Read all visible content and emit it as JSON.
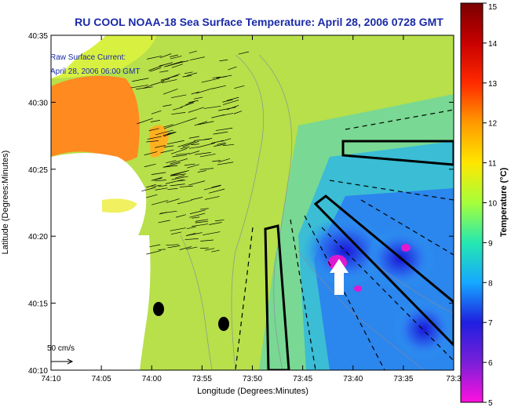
{
  "title": "RU COOL  NOAA-18  Sea Surface Temperature:  April 28, 2006 0728 GMT",
  "current_label_1": "Raw Surface Current:",
  "current_label_2": "April 28, 2006 06:00 GMT",
  "scale_label": "50 cm/s",
  "xlabel": "Longitude (Degrees:Minutes)",
  "ylabel": "Latitude (Degrees:Minutes)",
  "colorbar_label": "Temperature (°C)",
  "x_ticks": [
    "74:10",
    "74:05",
    "74:00",
    "73:55",
    "73:50",
    "73:45",
    "73:40",
    "73:35",
    "73:3"
  ],
  "y_ticks": [
    "40:35",
    "40:30",
    "40:25",
    "40:20",
    "40:15",
    "40:10"
  ],
  "colorbar_ticks": [
    "15",
    "14",
    "13",
    "12",
    "11",
    "10",
    "9",
    "8",
    "7",
    "6",
    "5"
  ],
  "colors": {
    "title": "#1a2aa8",
    "land": "#ffffff",
    "water_base": "#b5e04a"
  }
}
